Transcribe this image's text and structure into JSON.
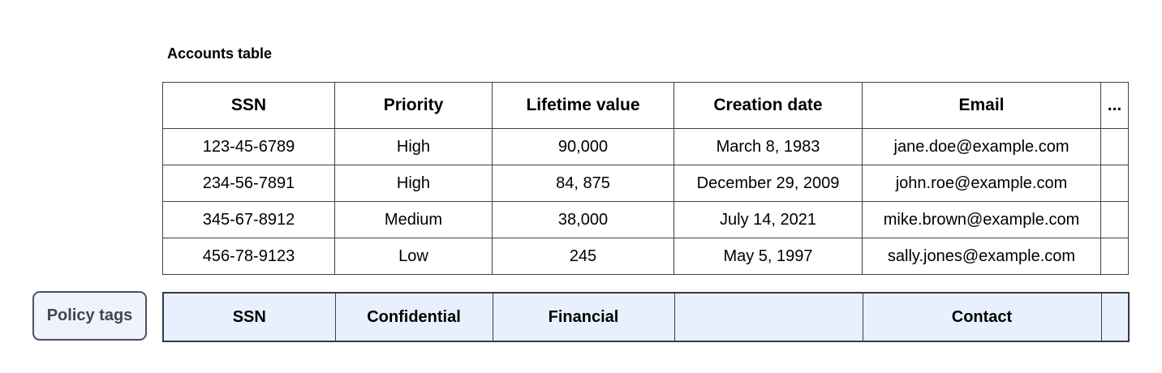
{
  "accounts_table": {
    "title": "Accounts table",
    "columns": [
      "SSN",
      "Priority",
      "Lifetime value",
      "Creation date",
      "Email",
      "..."
    ],
    "rows": [
      [
        "123-45-6789",
        "High",
        "90,000",
        "March 8, 1983",
        "jane.doe@example.com",
        ""
      ],
      [
        "234-56-7891",
        "High",
        "84, 875",
        "December 29, 2009",
        "john.roe@example.com",
        ""
      ],
      [
        "345-67-8912",
        "Medium",
        "38,000",
        "July 14, 2021",
        "mike.brown@example.com",
        ""
      ],
      [
        "456-78-9123",
        "Low",
        "245",
        "May 5, 1997",
        "sally.jones@example.com",
        ""
      ]
    ]
  },
  "policy_tags": {
    "label": "Policy tags",
    "cells": [
      "SSN",
      "Confidential",
      "Financial",
      "",
      "Contact",
      ""
    ]
  },
  "colors": {
    "policy_row_fill": "#e8f0fe",
    "policy_button_fill": "#eef3fc",
    "table_border": "#3a414d",
    "policy_border": "#39414e",
    "text": "#000000",
    "policy_label_text": "#3e4751"
  }
}
